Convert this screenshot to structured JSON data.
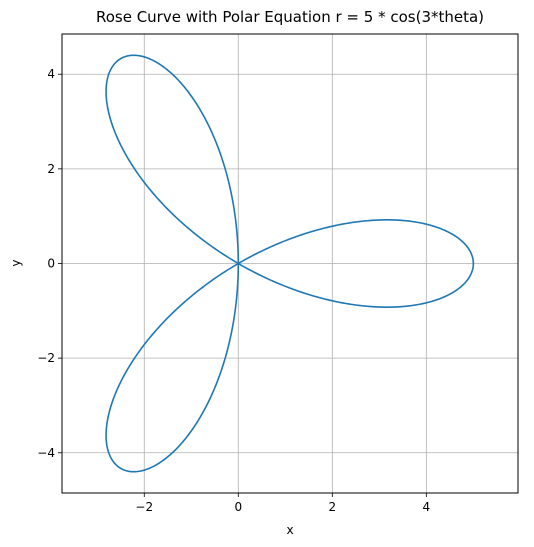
{
  "chart_data": {
    "type": "line",
    "title": "Rose Curve with Polar Equation r = 5 * cos(3*theta)",
    "xlabel": "x",
    "ylabel": "y",
    "xlim": [
      -3.75,
      5.95
    ],
    "ylim": [
      -4.85,
      4.85
    ],
    "xticks": [
      -2,
      0,
      2,
      4
    ],
    "yticks": [
      -4,
      -2,
      0,
      2,
      4
    ],
    "xtick_labels": [
      "−2",
      "0",
      "2",
      "4"
    ],
    "ytick_labels": [
      "−4",
      "−2",
      "0",
      "2",
      "4"
    ],
    "grid": true,
    "equation": {
      "amplitude": 5,
      "k": 3,
      "theta_range": [
        0,
        3.14159265
      ]
    },
    "series": [
      {
        "color": "#1f77b4"
      }
    ]
  }
}
